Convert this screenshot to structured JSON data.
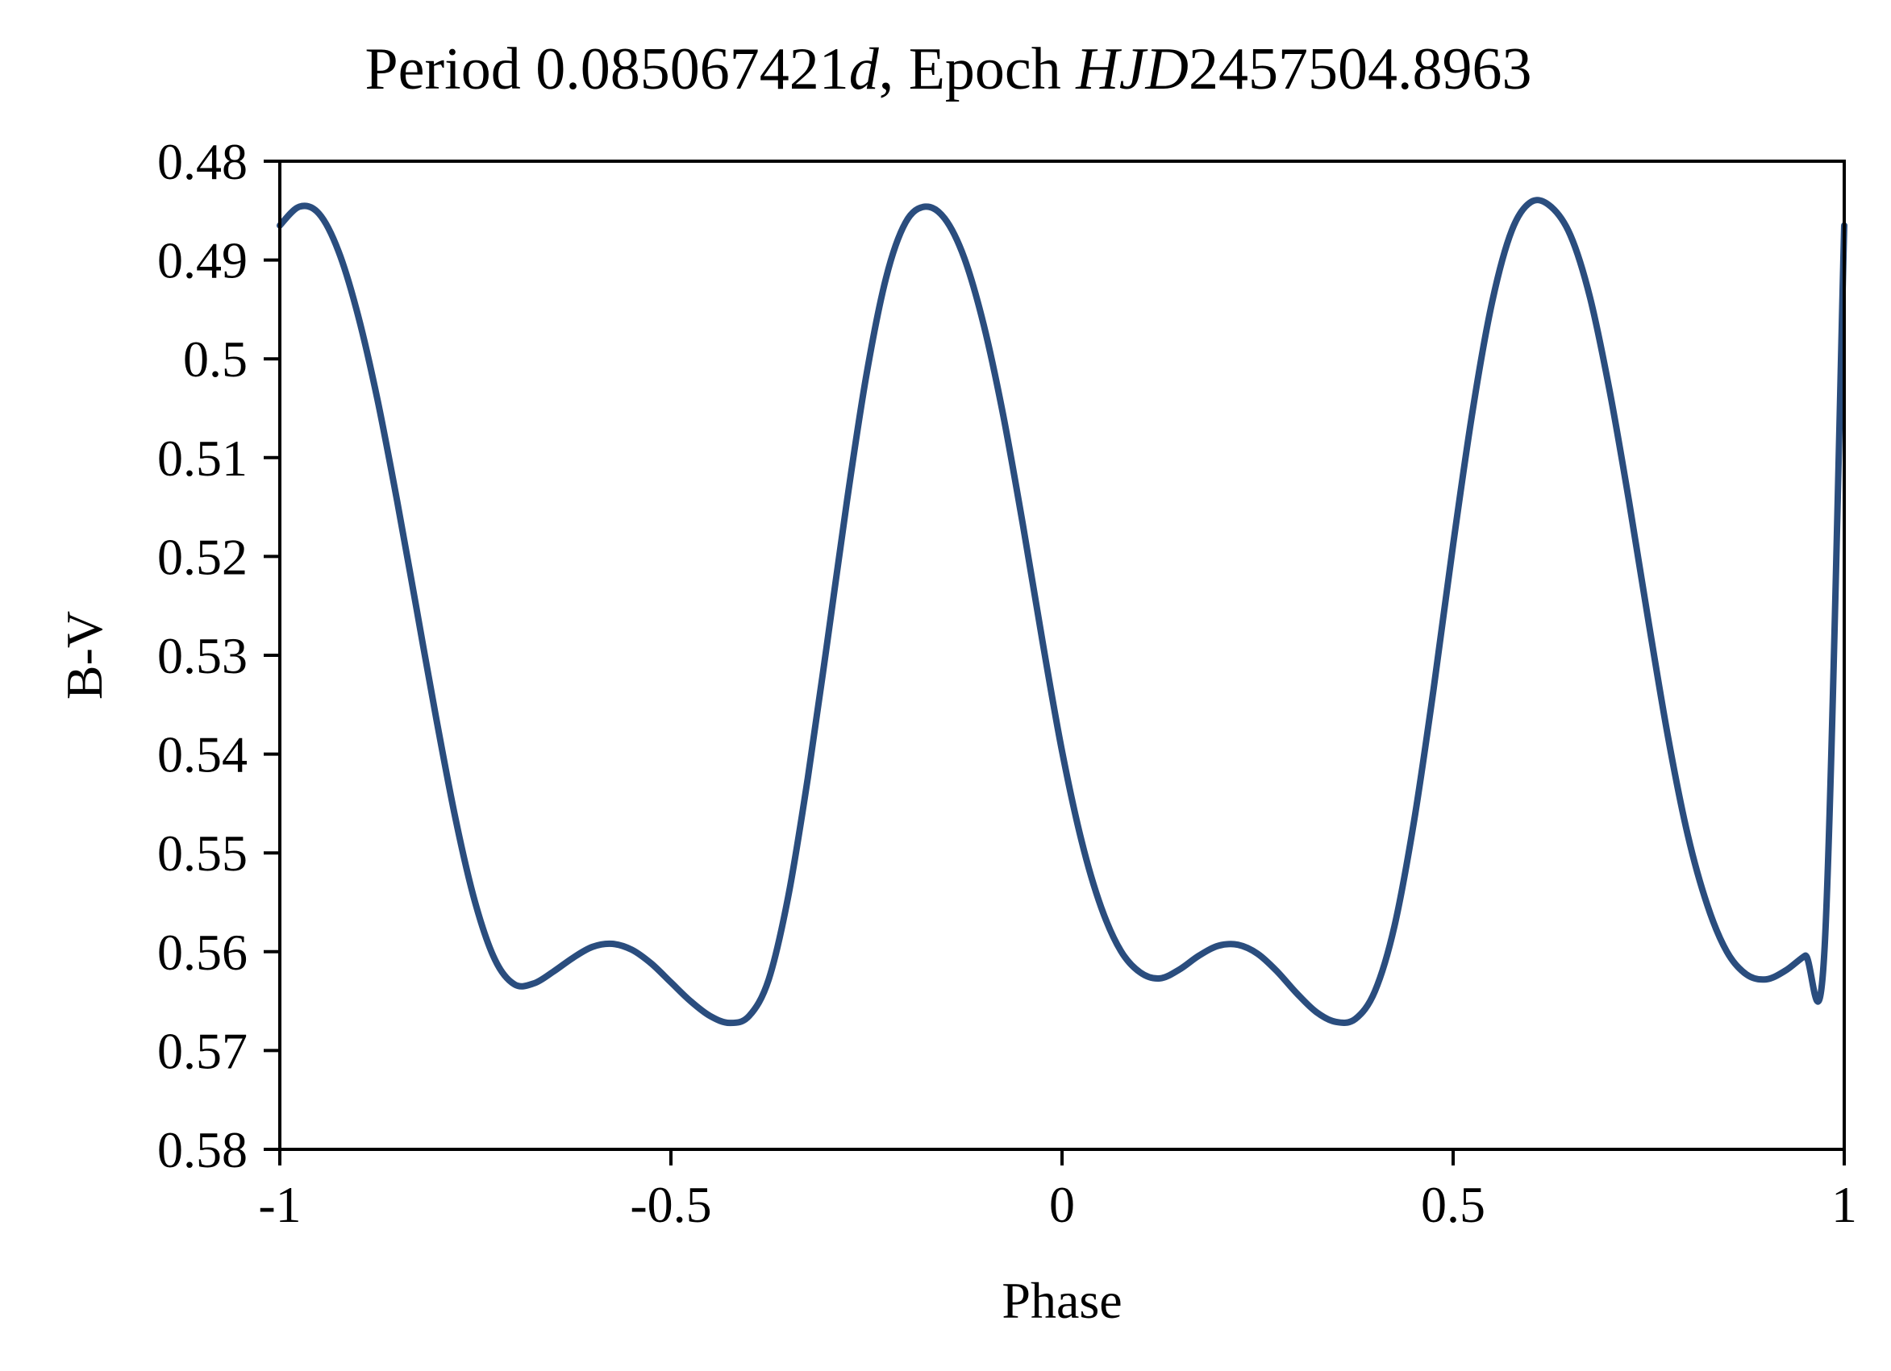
{
  "chart_data": {
    "type": "line",
    "title": {
      "prefix": "Period 0.085067421",
      "period_unit": "d",
      "middle": ", Epoch ",
      "epoch_label": "HJD",
      "epoch_value": "2457504.8963"
    },
    "xlabel": "Phase",
    "ylabel": "B-V",
    "xlim": [
      -1,
      1
    ],
    "ylim": [
      0.48,
      0.58
    ],
    "y_inverted": true,
    "grid": false,
    "legend": "none",
    "x_ticks": [
      "-1",
      "-0.5",
      "0",
      "0.5",
      "1"
    ],
    "y_ticks": [
      "0.48",
      "0.49",
      "0.5",
      "0.51",
      "0.52",
      "0.53",
      "0.54",
      "0.55",
      "0.56",
      "0.57",
      "0.58"
    ],
    "line_color": "#2a4d7e",
    "series": [
      {
        "x": [
          -1.0,
          -0.975,
          -0.95,
          -0.925,
          -0.9,
          -0.875,
          -0.85,
          -0.825,
          -0.8,
          -0.775,
          -0.75,
          -0.725,
          -0.7,
          -0.675,
          -0.65,
          -0.625,
          -0.6,
          -0.575,
          -0.55,
          -0.525,
          -0.5,
          -0.475,
          -0.45,
          -0.425,
          -0.4,
          -0.375,
          -0.35,
          -0.325,
          -0.3,
          -0.275,
          -0.25,
          -0.225,
          -0.2,
          -0.175,
          -0.15,
          -0.125,
          -0.1,
          -0.075,
          -0.05,
          -0.025,
          0.0,
          0.025,
          0.05,
          0.075,
          0.1,
          0.125,
          0.15,
          0.175,
          0.2,
          0.225,
          0.25,
          0.275,
          0.3,
          0.325,
          0.35,
          0.375,
          0.4,
          0.425,
          0.45,
          0.475,
          0.5,
          0.525,
          0.55,
          0.575,
          0.6,
          0.625,
          0.65,
          0.675,
          0.7,
          0.725,
          0.75,
          0.775,
          0.8,
          0.825,
          0.85,
          0.875,
          0.9,
          0.925,
          0.95,
          0.975,
          1.0
        ],
        "y": [
          0.4865,
          0.4846,
          0.4853,
          0.4891,
          0.4956,
          0.5042,
          0.5144,
          0.5254,
          0.5364,
          0.5467,
          0.5551,
          0.5608,
          0.5633,
          0.5632,
          0.562,
          0.5606,
          0.5595,
          0.5592,
          0.5598,
          0.5612,
          0.5631,
          0.565,
          0.5665,
          0.5672,
          0.5665,
          0.5628,
          0.5544,
          0.5424,
          0.5286,
          0.5144,
          0.5016,
          0.4918,
          0.4862,
          0.4846,
          0.4858,
          0.4898,
          0.4966,
          0.5058,
          0.5168,
          0.5286,
          0.5397,
          0.5488,
          0.5555,
          0.5599,
          0.5621,
          0.5627,
          0.5618,
          0.5604,
          0.5594,
          0.5593,
          0.5602,
          0.562,
          0.5642,
          0.5661,
          0.5671,
          0.5668,
          0.564,
          0.5574,
          0.5468,
          0.5334,
          0.5188,
          0.5052,
          0.4942,
          0.487,
          0.4841,
          0.4846,
          0.4875,
          0.4938,
          0.5032,
          0.5145,
          0.5267,
          0.5384,
          0.5482,
          0.5553,
          0.56,
          0.5623,
          0.5628,
          0.5619,
          0.5604,
          0.5594,
          0.4865
        ]
      }
    ]
  }
}
